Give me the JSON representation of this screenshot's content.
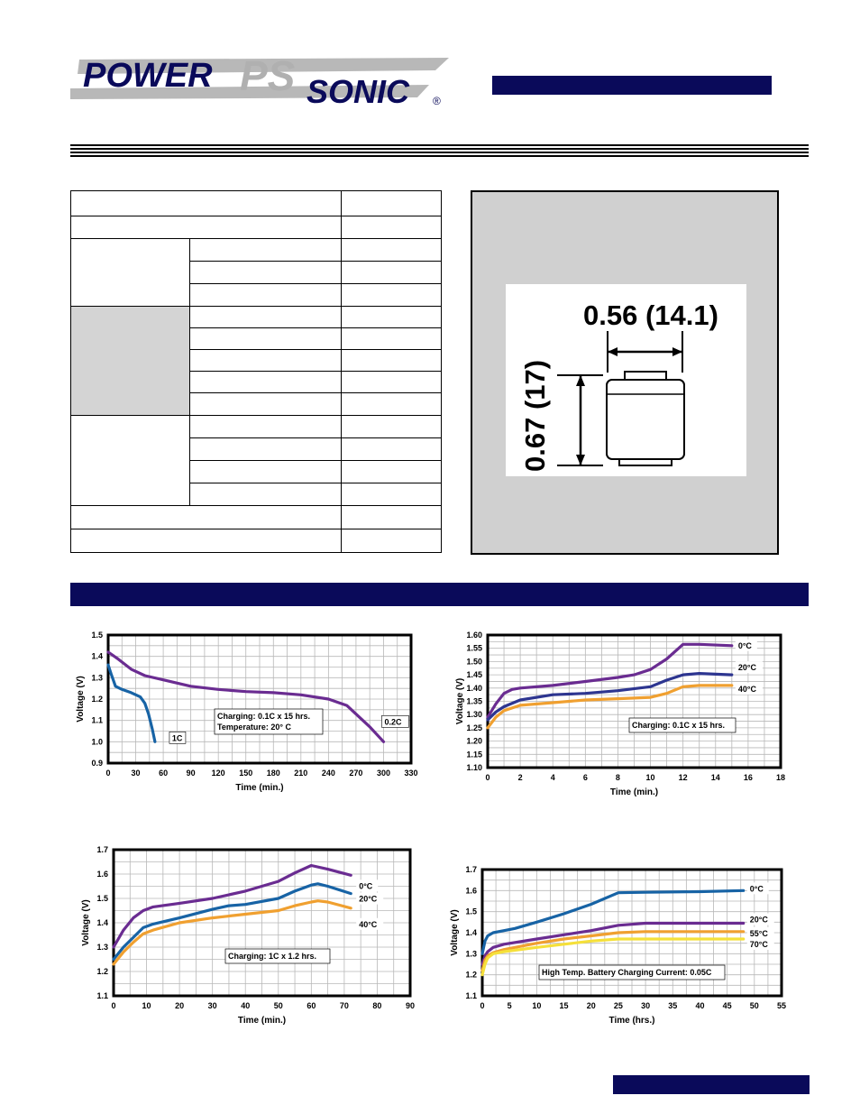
{
  "brand": {
    "power": "POWER",
    "sonic": "SONIC",
    "ps": "PS",
    "registered": "®",
    "logo_color": "#0a0a5a",
    "swoosh_color": "#b0b0b0"
  },
  "colors": {
    "navy": "#0a0a5a",
    "gray_panel": "#d0d0d0",
    "purple": "#6a2c91",
    "blue_dark": "#2d3590",
    "blue": "#1763a5",
    "orange": "#f0a030",
    "yellow": "#f5e03a"
  },
  "drawing": {
    "width_label": "0.56 (14.1)",
    "height_label": "0.67 (17)"
  },
  "chart_data": [
    {
      "type": "line",
      "title": "",
      "xlabel": "Time (min.)",
      "ylabel": "Voltage (V)",
      "xlim": [
        0,
        330
      ],
      "ylim": [
        0.9,
        1.5
      ],
      "xticks": [
        0,
        30,
        60,
        90,
        120,
        150,
        180,
        210,
        240,
        270,
        300,
        330
      ],
      "yticks": [
        "0.9",
        "1.0",
        "1.1",
        "1.2",
        "1.3",
        "1.4",
        "1.5"
      ],
      "annotation": [
        "Charging: 0.1C x 15 hrs.",
        "Temperature: 20° C"
      ],
      "series": [
        {
          "name": "1C",
          "color": "#1763a5",
          "x": [
            0,
            3,
            8,
            15,
            25,
            35,
            40,
            44,
            48,
            51
          ],
          "y": [
            1.36,
            1.32,
            1.26,
            1.245,
            1.23,
            1.21,
            1.18,
            1.13,
            1.06,
            1.0
          ]
        },
        {
          "name": "0.2C",
          "color": "#6a2c91",
          "x": [
            0,
            10,
            25,
            40,
            60,
            90,
            120,
            150,
            180,
            210,
            240,
            260,
            270,
            285,
            300
          ],
          "y": [
            1.42,
            1.39,
            1.34,
            1.31,
            1.29,
            1.26,
            1.245,
            1.235,
            1.23,
            1.22,
            1.2,
            1.17,
            1.13,
            1.07,
            1.0
          ]
        }
      ]
    },
    {
      "type": "line",
      "title": "",
      "xlabel": "Time (min.)",
      "ylabel": "Voltage (V)",
      "xlim": [
        0,
        18
      ],
      "ylim": [
        1.1,
        1.6
      ],
      "xticks": [
        0,
        2,
        4,
        6,
        8,
        10,
        12,
        14,
        16,
        18
      ],
      "yticks": [
        "1.10",
        "1.15",
        "1.20",
        "1.25",
        "1.30",
        "1.35",
        "1.40",
        "1.45",
        "1.50",
        "1.55",
        "1.60"
      ],
      "annotation": [
        "Charging: 0.1C x 15 hrs."
      ],
      "series": [
        {
          "name": "0°C",
          "color": "#6a2c91",
          "x": [
            0,
            0.5,
            1,
            1.5,
            2,
            4,
            6,
            8,
            9,
            10,
            11,
            12,
            13,
            15
          ],
          "y": [
            1.29,
            1.34,
            1.38,
            1.395,
            1.4,
            1.41,
            1.425,
            1.44,
            1.45,
            1.47,
            1.51,
            1.565,
            1.565,
            1.56
          ]
        },
        {
          "name": "20°C",
          "color": "#2d3590",
          "x": [
            0,
            0.5,
            1,
            2,
            4,
            6,
            8,
            10,
            11,
            12,
            13,
            15
          ],
          "y": [
            1.28,
            1.31,
            1.33,
            1.355,
            1.375,
            1.38,
            1.39,
            1.405,
            1.43,
            1.45,
            1.455,
            1.45
          ]
        },
        {
          "name": "40°C",
          "color": "#f0a030",
          "x": [
            0,
            0.5,
            1,
            2,
            4,
            6,
            8,
            10,
            11,
            12,
            13,
            15
          ],
          "y": [
            1.25,
            1.29,
            1.315,
            1.335,
            1.345,
            1.355,
            1.36,
            1.365,
            1.38,
            1.405,
            1.41,
            1.41
          ]
        }
      ]
    },
    {
      "type": "line",
      "title": "",
      "xlabel": "Time (min.)",
      "ylabel": "Voltage (V)",
      "xlim": [
        0,
        90
      ],
      "ylim": [
        1.1,
        1.7
      ],
      "xticks": [
        0,
        10,
        20,
        30,
        40,
        50,
        60,
        70,
        80,
        90
      ],
      "yticks": [
        "1.1",
        "1.2",
        "1.3",
        "1.4",
        "1.5",
        "1.6",
        "1.7"
      ],
      "annotation": [
        "Charging: 1C x 1.2 hrs."
      ],
      "series": [
        {
          "name": "0°C",
          "color": "#6a2c91",
          "x": [
            0,
            3,
            6,
            9,
            12,
            20,
            30,
            40,
            50,
            55,
            60,
            65,
            72
          ],
          "y": [
            1.3,
            1.37,
            1.42,
            1.45,
            1.465,
            1.48,
            1.5,
            1.53,
            1.57,
            1.605,
            1.635,
            1.62,
            1.595
          ]
        },
        {
          "name": "20°C",
          "color": "#1763a5",
          "x": [
            0,
            3,
            6,
            9,
            12,
            20,
            30,
            35,
            40,
            50,
            55,
            60,
            62,
            65,
            72
          ],
          "y": [
            1.25,
            1.3,
            1.34,
            1.38,
            1.395,
            1.42,
            1.455,
            1.47,
            1.475,
            1.5,
            1.53,
            1.555,
            1.56,
            1.55,
            1.52
          ]
        },
        {
          "name": "40°C",
          "color": "#f0a030",
          "x": [
            0,
            3,
            6,
            9,
            12,
            20,
            30,
            40,
            50,
            55,
            60,
            62,
            65,
            72
          ],
          "y": [
            1.23,
            1.28,
            1.32,
            1.355,
            1.37,
            1.4,
            1.42,
            1.435,
            1.45,
            1.47,
            1.485,
            1.49,
            1.485,
            1.46
          ]
        }
      ]
    },
    {
      "type": "line",
      "title": "",
      "xlabel": "Time (hrs.)",
      "ylabel": "Voltage (V)",
      "xlim": [
        0,
        55
      ],
      "ylim": [
        1.1,
        1.7
      ],
      "xticks": [
        0,
        5,
        10,
        15,
        20,
        25,
        30,
        35,
        40,
        45,
        50,
        55
      ],
      "yticks": [
        "1.1",
        "1.2",
        "1.3",
        "1.4",
        "1.5",
        "1.6",
        "1.7"
      ],
      "annotation": [
        "High Temp. Battery Charging Current: 0.05C"
      ],
      "series": [
        {
          "name": "0°C",
          "color": "#1763a5",
          "x": [
            0,
            0.5,
            1,
            2,
            4,
            6,
            10,
            15,
            20,
            25,
            30,
            40,
            48
          ],
          "y": [
            1.3,
            1.36,
            1.385,
            1.4,
            1.41,
            1.42,
            1.45,
            1.49,
            1.535,
            1.59,
            1.592,
            1.595,
            1.6
          ]
        },
        {
          "name": "20°C",
          "color": "#6a2c91",
          "x": [
            0,
            0.5,
            1,
            2,
            4,
            10,
            15,
            20,
            25,
            30,
            40,
            48
          ],
          "y": [
            1.25,
            1.29,
            1.31,
            1.33,
            1.345,
            1.37,
            1.39,
            1.41,
            1.435,
            1.445,
            1.445,
            1.445
          ]
        },
        {
          "name": "55°C",
          "color": "#f0a030",
          "x": [
            0,
            0.5,
            1,
            2,
            4,
            10,
            15,
            20,
            25,
            30,
            40,
            48
          ],
          "y": [
            1.22,
            1.27,
            1.29,
            1.305,
            1.32,
            1.35,
            1.37,
            1.385,
            1.4,
            1.405,
            1.405,
            1.405
          ]
        },
        {
          "name": "70°C",
          "color": "#f5e03a",
          "x": [
            0,
            0.5,
            1,
            2,
            4,
            10,
            15,
            20,
            25,
            30,
            40,
            48
          ],
          "y": [
            1.2,
            1.25,
            1.28,
            1.3,
            1.31,
            1.33,
            1.345,
            1.36,
            1.37,
            1.37,
            1.37,
            1.37
          ]
        }
      ]
    }
  ]
}
